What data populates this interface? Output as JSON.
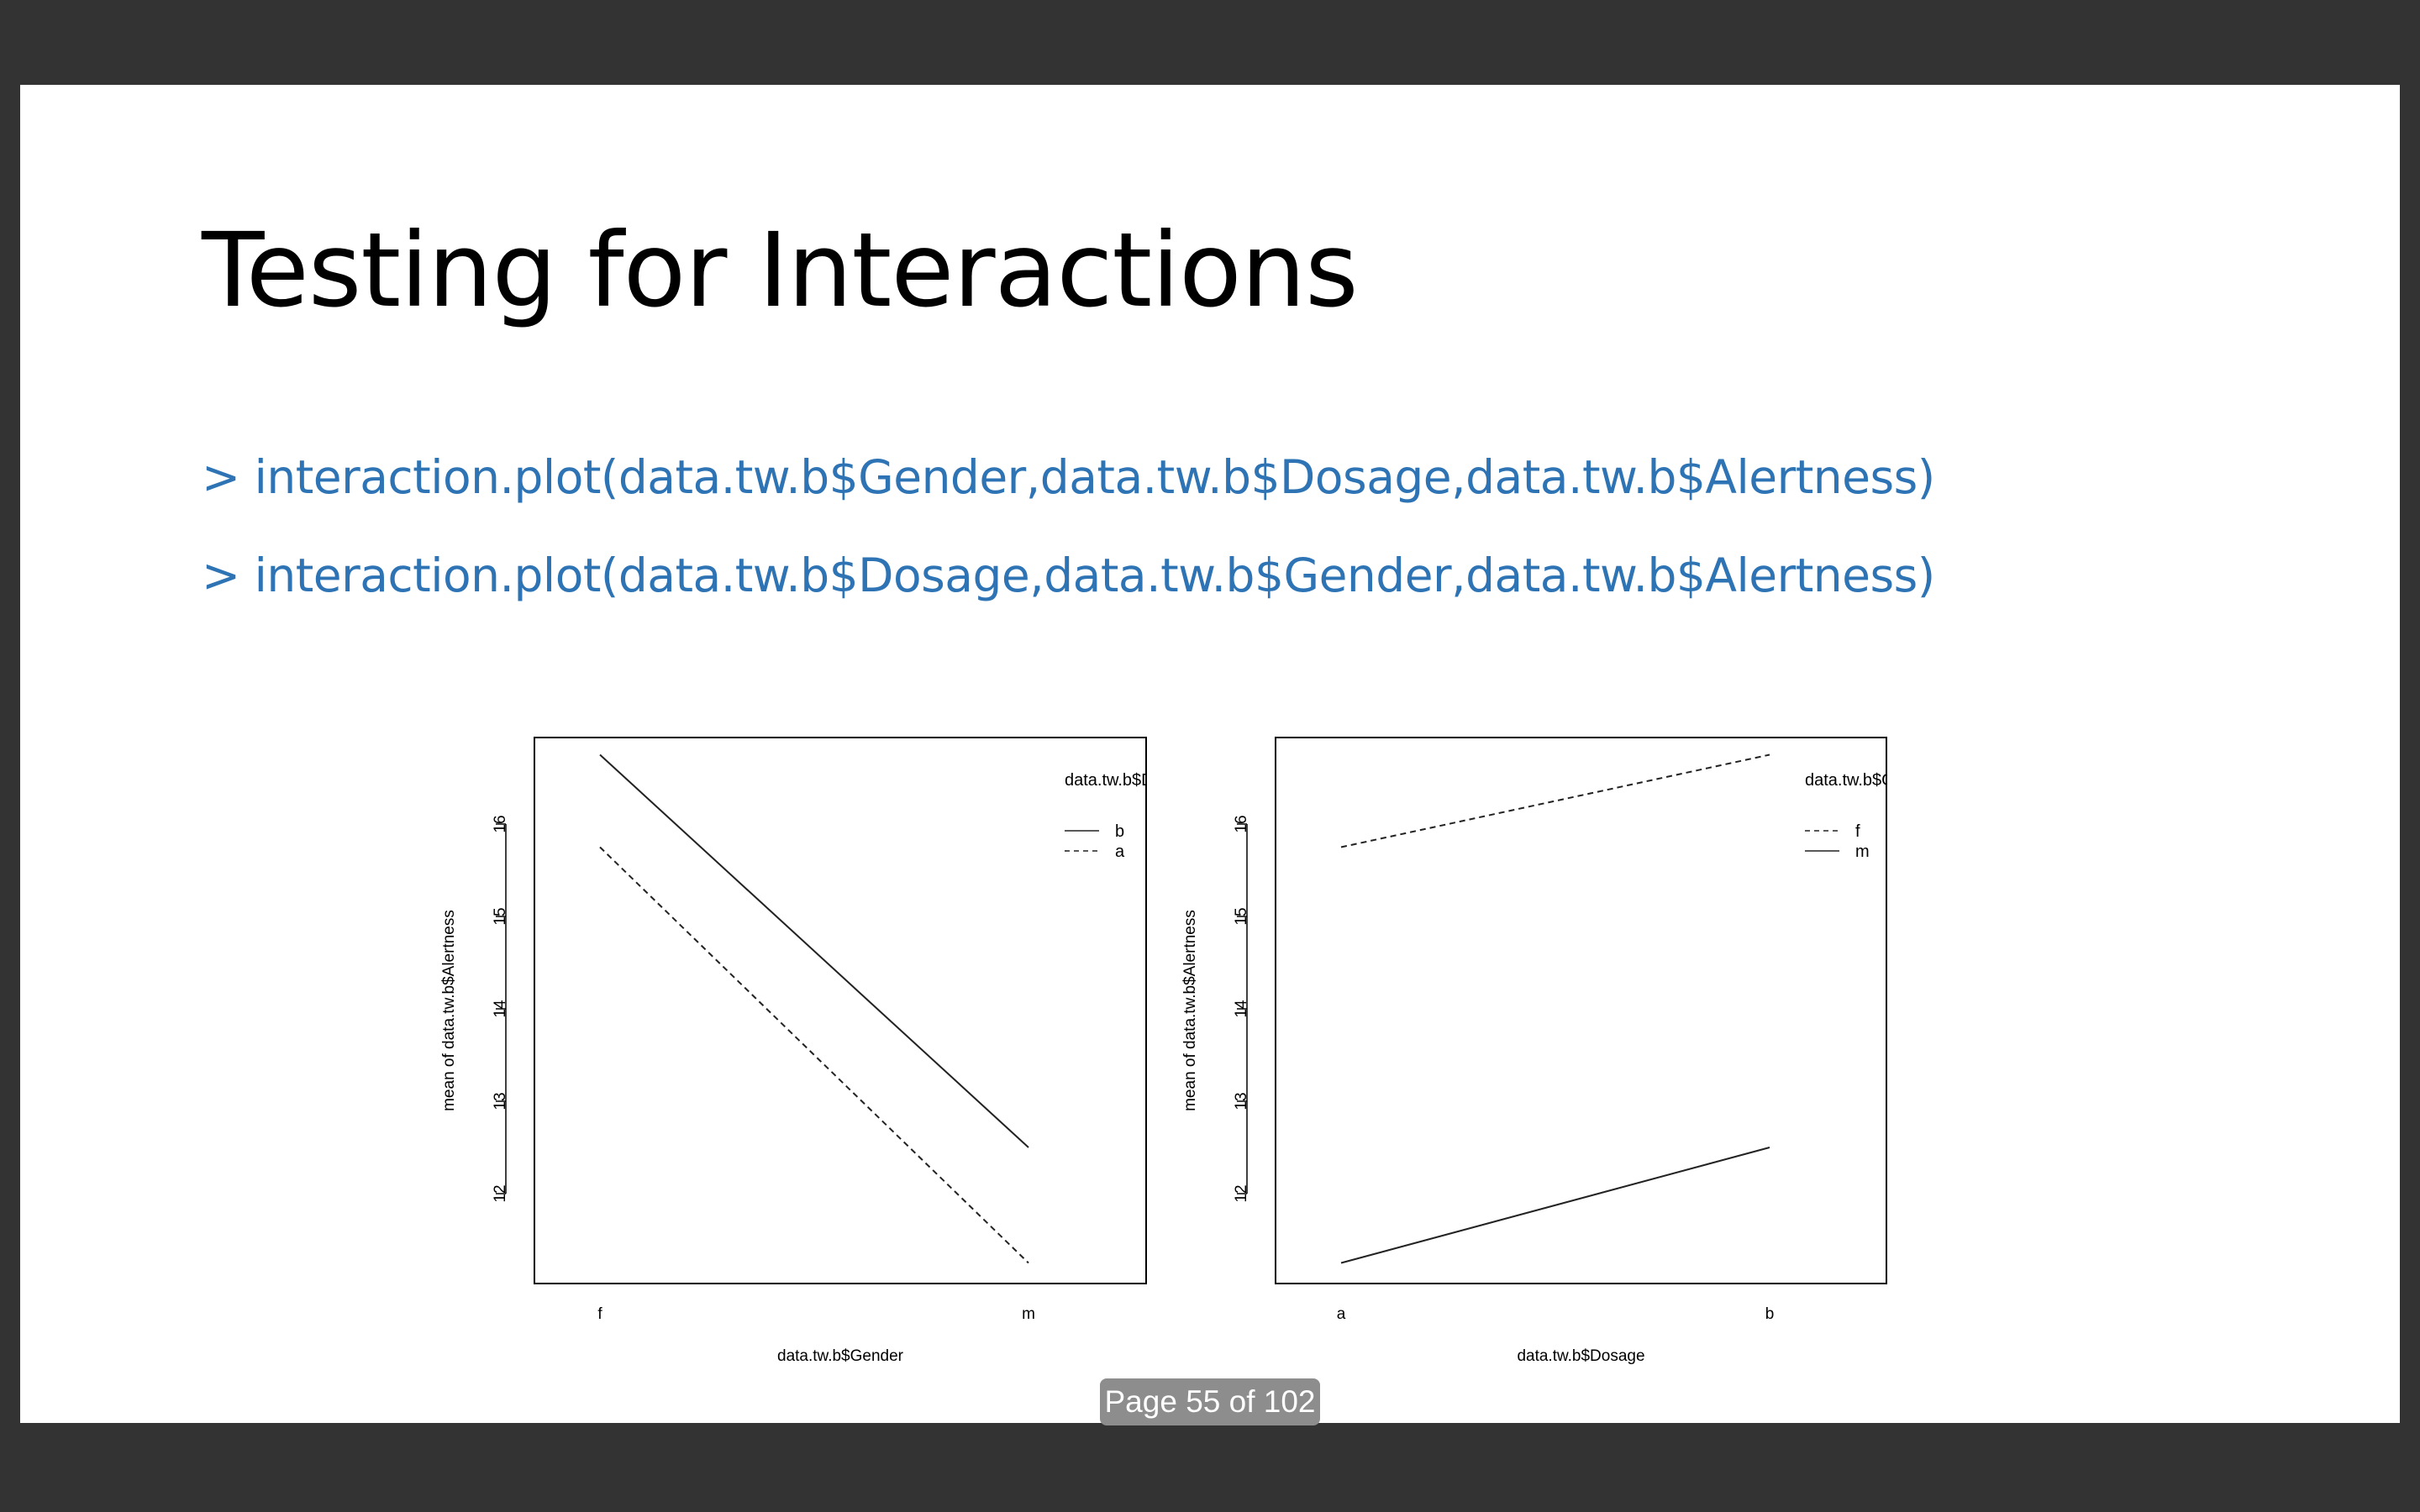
{
  "slide": {
    "title": "Testing for Interactions",
    "code_lines": [
      "> interaction.plot(data.tw.b$Gender,data.tw.b$Dosage,data.tw.b$Alertness)",
      "> interaction.plot(data.tw.b$Dosage,data.tw.b$Gender,data.tw.b$Alertness)"
    ]
  },
  "viewer": {
    "page_indicator": "Page 55 of 102",
    "background_color": "#333333",
    "slide_background": "#ffffff",
    "code_color": "#2e74b5"
  },
  "chart_data": [
    {
      "type": "line",
      "title": "",
      "xlabel": "data.tw.b$Gender",
      "ylabel": "mean of data.tw.b$Alertness",
      "categories": [
        "f",
        "m"
      ],
      "yticks": [
        12,
        13,
        14,
        15,
        16
      ],
      "ylim": [
        11,
        17
      ],
      "legend_title": "data.tw.b$Dosag",
      "legend_position": "top-right",
      "series": [
        {
          "name": "b",
          "values": [
            16.75,
            12.5
          ],
          "style": "solid"
        },
        {
          "name": "a",
          "values": [
            15.75,
            11.25
          ],
          "style": "dashed"
        }
      ]
    },
    {
      "type": "line",
      "title": "",
      "xlabel": "data.tw.b$Dosage",
      "ylabel": "mean of data.tw.b$Alertness",
      "categories": [
        "a",
        "b"
      ],
      "yticks": [
        12,
        13,
        14,
        15,
        16
      ],
      "ylim": [
        11,
        17
      ],
      "legend_title": "data.tw.b$Gend",
      "legend_position": "top-right",
      "series": [
        {
          "name": "f",
          "values": [
            15.75,
            16.75
          ],
          "style": "dashed"
        },
        {
          "name": "m",
          "values": [
            11.25,
            12.5
          ],
          "style": "solid"
        }
      ]
    }
  ]
}
